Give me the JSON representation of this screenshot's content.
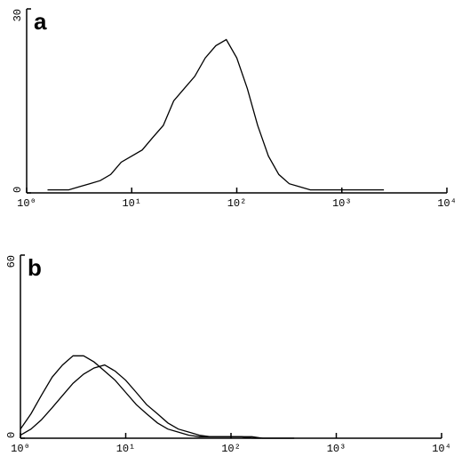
{
  "chart_data": [
    {
      "type": "line",
      "panel_label": "a",
      "x_scale": "log",
      "xlim": [
        1,
        10000
      ],
      "xticks": [
        {
          "value": 1,
          "label": "10⁰"
        },
        {
          "value": 10,
          "label": "10¹"
        },
        {
          "value": 100,
          "label": "10²"
        },
        {
          "value": 1000,
          "label": "10³"
        },
        {
          "value": 10000,
          "label": "10⁴"
        }
      ],
      "ylim": [
        0,
        30
      ],
      "yticks": [
        0,
        30
      ],
      "x": [
        1.58,
        2.0,
        2.51,
        3.16,
        3.98,
        5.01,
        6.31,
        7.94,
        10,
        12.6,
        15.8,
        20,
        25.1,
        31.6,
        39.8,
        50.1,
        63.1,
        79.4,
        100,
        126,
        158,
        200,
        251,
        316,
        398,
        501,
        631,
        794,
        1000,
        1259,
        1585,
        1995,
        2512
      ],
      "series": [
        {
          "color": "#000000",
          "values": [
            0.5,
            0.5,
            0.5,
            1,
            1.5,
            2,
            3,
            5,
            6,
            7,
            9,
            11,
            15,
            17,
            19,
            22,
            24,
            25,
            22,
            17,
            11,
            6,
            3,
            1.5,
            1,
            0.5,
            0.5,
            0.5,
            0.5,
            0.5,
            0.5,
            0.5,
            0.5
          ]
        }
      ]
    },
    {
      "type": "line",
      "panel_label": "b",
      "x_scale": "log",
      "xlim": [
        1,
        10000
      ],
      "xticks": [
        {
          "value": 1,
          "label": "10⁰"
        },
        {
          "value": 10,
          "label": "10¹"
        },
        {
          "value": 100,
          "label": "10²"
        },
        {
          "value": 1000,
          "label": "10³"
        },
        {
          "value": 10000,
          "label": "10⁴"
        }
      ],
      "ylim": [
        0,
        60
      ],
      "yticks": [
        0,
        60
      ],
      "x": [
        1,
        1.26,
        1.58,
        2,
        2.51,
        3.16,
        3.98,
        5.01,
        6.31,
        7.94,
        10,
        12.6,
        15.8,
        20,
        25.1,
        31.6,
        39.8,
        50.1,
        63.1,
        79.4,
        100,
        126,
        158,
        200,
        251,
        316,
        398
      ],
      "series": [
        {
          "color": "#000000",
          "values": [
            3,
            8,
            14,
            20,
            24,
            27,
            27,
            25,
            22,
            19,
            15,
            11,
            8,
            5,
            3,
            2,
            1,
            0.5,
            0.5,
            0.5,
            0.5,
            0.5,
            0,
            0,
            0,
            0,
            0
          ]
        },
        {
          "color": "#000000",
          "values": [
            1,
            3,
            6,
            10,
            14,
            18,
            21,
            23,
            24,
            22,
            19,
            15,
            11,
            8,
            5,
            3,
            2,
            1,
            0.5,
            0.5,
            0.5,
            0.5,
            0.5,
            0,
            0,
            0,
            0
          ]
        }
      ]
    }
  ]
}
